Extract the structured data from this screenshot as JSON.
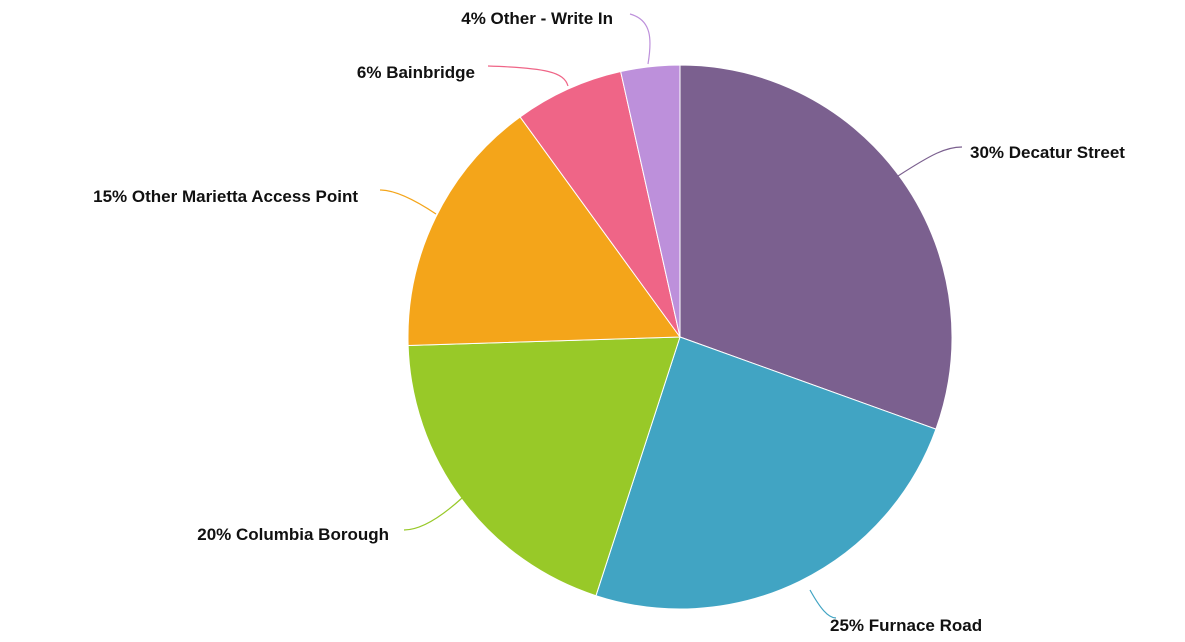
{
  "chart_data": {
    "type": "pie",
    "title": "",
    "start_angle_deg": 0,
    "direction": "clockwise",
    "slices": [
      {
        "label": "Decatur Street",
        "percent_label": "30%",
        "value": 30.5,
        "color": "#7b608f"
      },
      {
        "label": "Furnace Road",
        "percent_label": "25%",
        "value": 24.5,
        "color": "#41a4c3"
      },
      {
        "label": "Columbia Borough",
        "percent_label": "20%",
        "value": 19.5,
        "color": "#98c928"
      },
      {
        "label": "Other Marietta Access Point",
        "percent_label": "15%",
        "value": 15.5,
        "color": "#f4a51a"
      },
      {
        "label": "Bainbridge",
        "percent_label": "6%",
        "value": 6.5,
        "color": "#ef6587"
      },
      {
        "label": "Other - Write In",
        "percent_label": "4%",
        "value": 3.5,
        "color": "#bd90db"
      }
    ]
  }
}
